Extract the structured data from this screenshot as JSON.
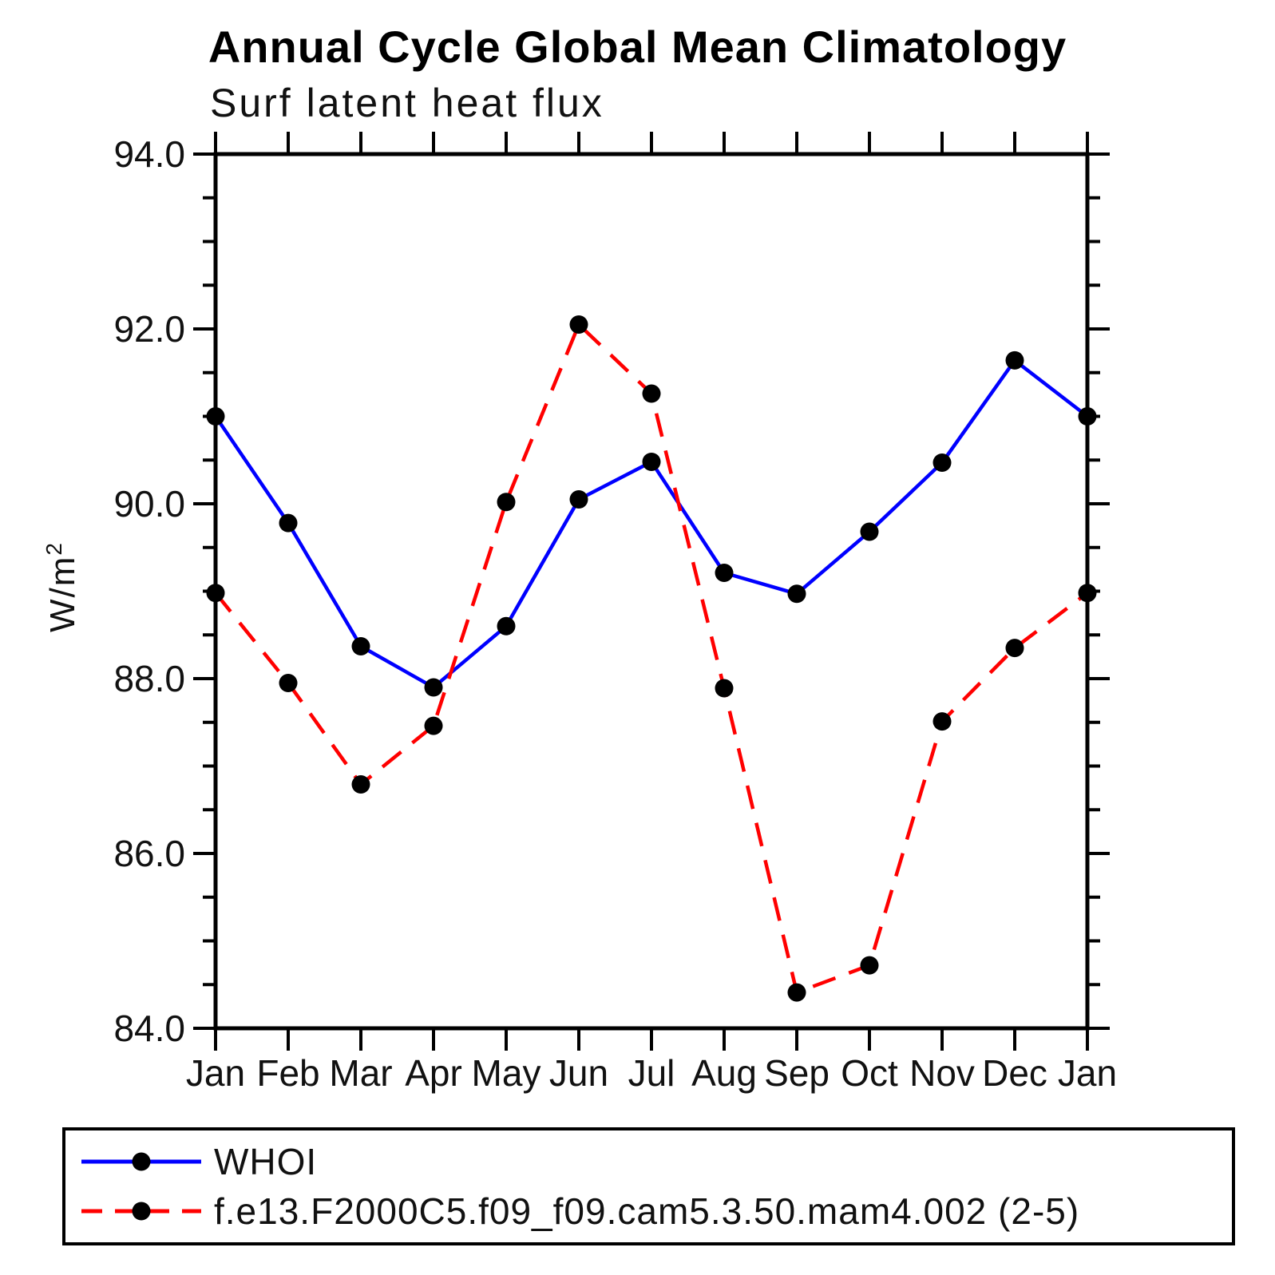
{
  "title": "Annual Cycle Global Mean Climatology",
  "subtitle": "Surf latent heat flux",
  "y_axis": {
    "label_base": "W/m",
    "label_sup": "2"
  },
  "chart_data": {
    "type": "line",
    "title": "Annual Cycle Global Mean Climatology",
    "subtitle": "Surf latent heat flux",
    "ylabel": "W/m2",
    "xlabel": "",
    "categories": [
      "Jan",
      "Feb",
      "Mar",
      "Apr",
      "May",
      "Jun",
      "Jul",
      "Aug",
      "Sep",
      "Oct",
      "Nov",
      "Dec",
      "Jan"
    ],
    "series": [
      {
        "name": "WHOI",
        "color": "#0000ff",
        "line_style": "solid",
        "values": [
          91.0,
          89.78,
          88.37,
          87.9,
          88.6,
          90.05,
          90.48,
          89.21,
          88.97,
          89.68,
          90.47,
          91.64,
          91.0
        ]
      },
      {
        "name": "f.e13.F2000C5.f09_f09.cam5.3.50.mam4.002 (2-5)",
        "color": "#ff0000",
        "line_style": "dashed",
        "values": [
          88.98,
          87.95,
          86.79,
          87.46,
          90.02,
          92.05,
          91.26,
          87.89,
          84.41,
          84.72,
          87.51,
          88.35,
          88.98
        ]
      }
    ],
    "ylim": [
      84.0,
      94.0
    ],
    "ytick_major_step": 2.0,
    "ytick_minor_step": 0.5,
    "ytick_labels": [
      "84.0",
      "86.0",
      "88.0",
      "90.0",
      "92.0",
      "94.0"
    ],
    "grid": false,
    "legend_position": "bottom-left",
    "marker": {
      "shape": "circle",
      "color": "#000000"
    },
    "axis_color": "#000000"
  }
}
